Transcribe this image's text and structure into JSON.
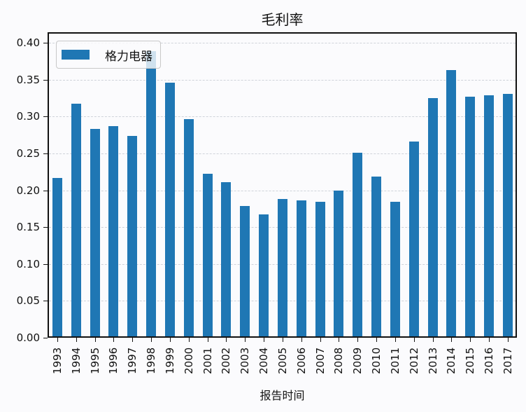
{
  "chart_data": {
    "type": "bar",
    "title": "毛利率",
    "xlabel": "报告时间",
    "ylabel": "",
    "ylim": [
      0,
      0.41
    ],
    "yticks": [
      "0.00",
      "0.05",
      "0.10",
      "0.15",
      "0.20",
      "0.25",
      "0.30",
      "0.35",
      "0.40"
    ],
    "grid": true,
    "legend_position": "upper left",
    "categories": [
      "1993",
      "1994",
      "1995",
      "1996",
      "1997",
      "1998",
      "1999",
      "2000",
      "2001",
      "2002",
      "2003",
      "2004",
      "2005",
      "2006",
      "2007",
      "2008",
      "2009",
      "2010",
      "2011",
      "2012",
      "2013",
      "2014",
      "2015",
      "2016",
      "2017"
    ],
    "series": [
      {
        "name": "格力电器",
        "color": "#1f77b4",
        "values": [
          0.215,
          0.315,
          0.281,
          0.285,
          0.272,
          0.387,
          0.344,
          0.295,
          0.22,
          0.209,
          0.177,
          0.165,
          0.186,
          0.184,
          0.182,
          0.198,
          0.249,
          0.217,
          0.182,
          0.264,
          0.323,
          0.361,
          0.325,
          0.327,
          0.329
        ]
      }
    ]
  }
}
